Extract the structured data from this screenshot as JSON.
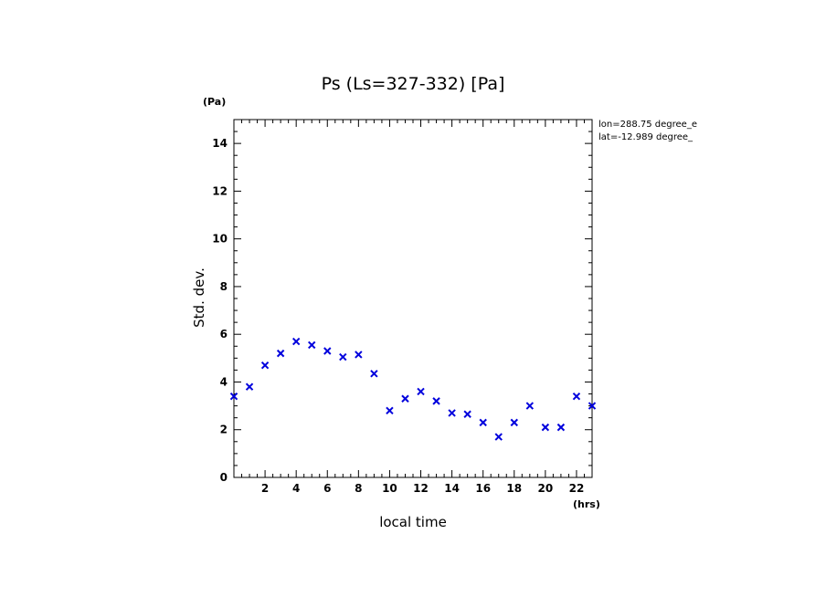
{
  "chart_data": {
    "type": "scatter",
    "title": "Ps (Ls=327-332) [Pa]",
    "xlabel": "local time",
    "ylabel": "Std. dev.",
    "x_unit": "(hrs)",
    "y_unit": "(Pa)",
    "xlim": [
      0,
      23
    ],
    "ylim": [
      0,
      15
    ],
    "x_ticks": [
      "2",
      "4",
      "6",
      "8",
      "10",
      "12",
      "14",
      "16",
      "18",
      "20",
      "22"
    ],
    "y_ticks": [
      "0",
      "2",
      "4",
      "6",
      "8",
      "10",
      "12",
      "14"
    ],
    "annotations": [
      "lon=288.75 degree_e",
      "lat=-12.989 degree_"
    ],
    "marker_color": "#0000dd",
    "series": [
      {
        "name": "Std. dev.",
        "x": [
          0,
          1,
          2,
          3,
          4,
          5,
          6,
          7,
          8,
          9,
          10,
          11,
          12,
          13,
          14,
          15,
          16,
          17,
          18,
          19,
          20,
          21,
          22,
          23
        ],
        "y": [
          3.4,
          3.8,
          4.7,
          5.2,
          5.7,
          5.55,
          5.3,
          5.05,
          5.15,
          4.35,
          2.8,
          3.3,
          3.6,
          3.2,
          2.7,
          2.65,
          2.3,
          1.7,
          2.3,
          3.0,
          2.1,
          2.1,
          3.4,
          3.0
        ]
      }
    ]
  }
}
